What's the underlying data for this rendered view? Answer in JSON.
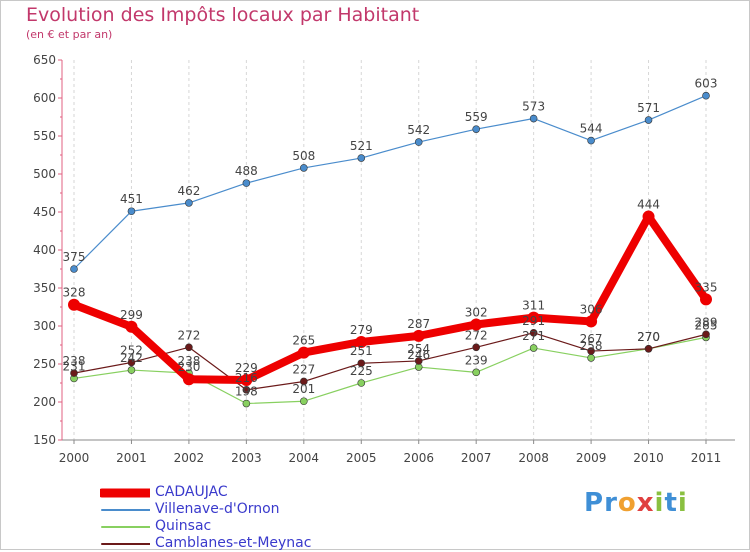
{
  "header": {
    "title": "Evolution des Impôts locaux par Habitant",
    "subtitle": "(en € et par an)"
  },
  "brand": {
    "letters": [
      "P",
      "r",
      "o",
      "x",
      "i",
      "t",
      "i"
    ],
    "colors": [
      "#3f8fd6",
      "#3f8fd6",
      "#f0a030",
      "#e04040",
      "#8ac040",
      "#3f8fd6",
      "#8ac040"
    ]
  },
  "chart_data": {
    "type": "line",
    "x": [
      "2000",
      "2001",
      "2002",
      "2003",
      "2004",
      "2005",
      "2006",
      "2007",
      "2008",
      "2009",
      "2010",
      "2011"
    ],
    "ylim": [
      150,
      650
    ],
    "yticks": [
      150,
      200,
      250,
      300,
      350,
      400,
      450,
      500,
      550,
      600,
      650
    ],
    "grid": "vertical dashed",
    "legend_position": "bottom-left",
    "series": [
      {
        "name": "CADAUJAC",
        "color": "#ee0000",
        "values": [
          328,
          299,
          230,
          229,
          265,
          279,
          287,
          302,
          311,
          306,
          444,
          335
        ]
      },
      {
        "name": "Villenave-d'Ornon",
        "color": "#4a8ccc",
        "values": [
          375,
          451,
          462,
          488,
          508,
          521,
          542,
          559,
          573,
          544,
          571,
          603
        ]
      },
      {
        "name": "Quinsac",
        "color": "#88d060",
        "values": [
          231,
          242,
          238,
          198,
          201,
          225,
          246,
          239,
          271,
          258,
          270,
          285
        ]
      },
      {
        "name": "Camblanes-et-Meynac",
        "color": "#6b1a1a",
        "values": [
          238,
          252,
          272,
          216,
          227,
          251,
          254,
          272,
          291,
          267,
          270,
          289
        ]
      }
    ]
  }
}
